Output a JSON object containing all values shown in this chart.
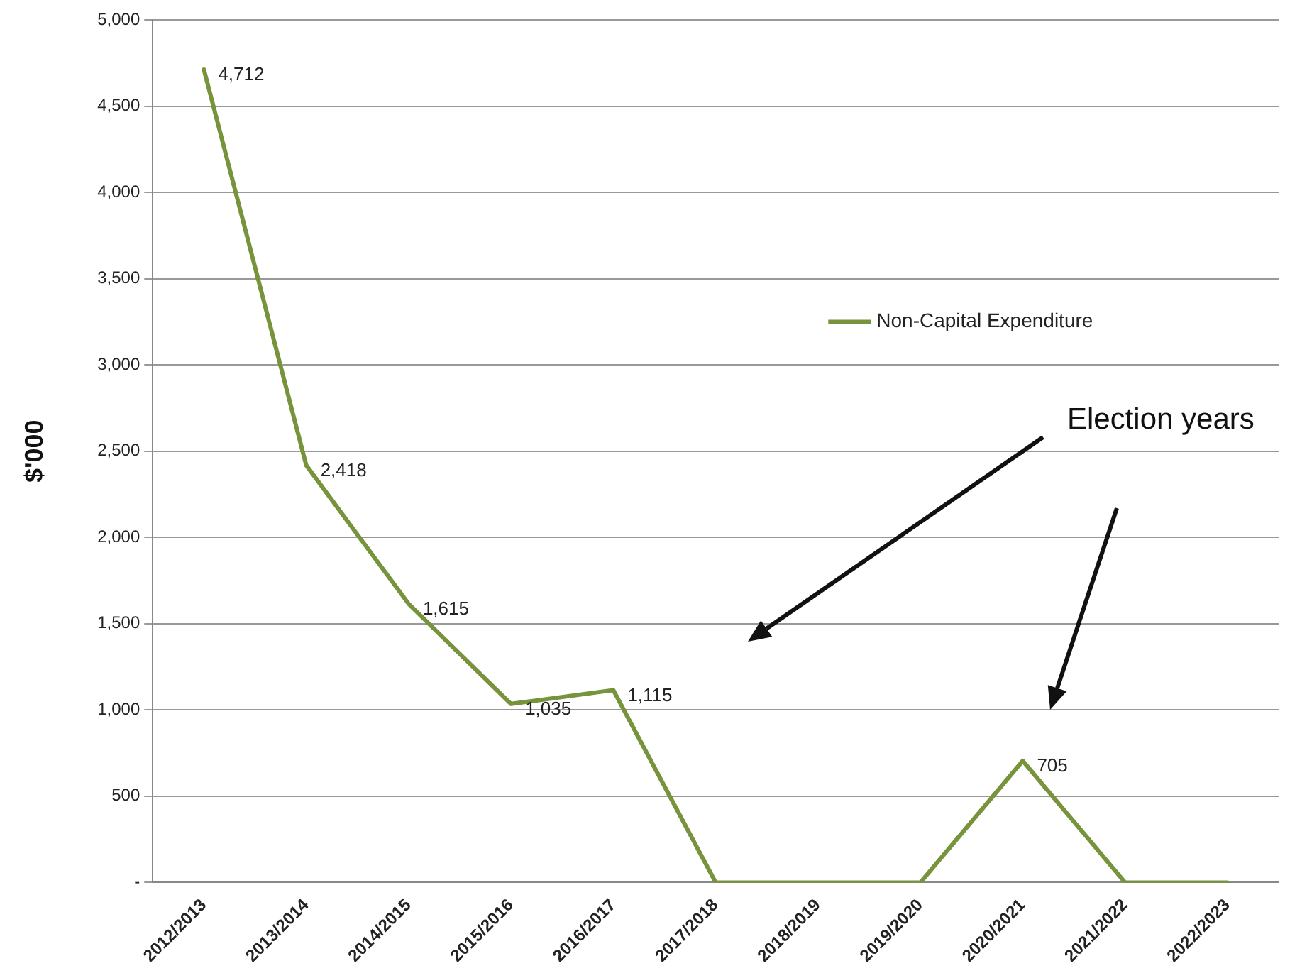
{
  "chart_data": {
    "type": "line",
    "ylabel": "$'000",
    "categories": [
      "2012/2013",
      "2013/2014",
      "2014/2015",
      "2015/2016",
      "2016/2017",
      "2017/2018",
      "2018/2019",
      "2019/2020",
      "2020/2021",
      "2021/2022",
      "2022/2023"
    ],
    "series": [
      {
        "name": "Non-Capital Expenditure",
        "color": "#77933c",
        "values": [
          4712,
          2418,
          1615,
          1035,
          1115,
          0,
          0,
          0,
          705,
          0,
          0
        ],
        "value_labels": [
          "4,712",
          "2,418",
          "1,615",
          "1,035",
          "1,115",
          null,
          null,
          null,
          "705",
          null,
          null
        ]
      }
    ],
    "ylim": [
      0,
      5000
    ],
    "yticks": [
      {
        "value": 0,
        "label": "-"
      },
      {
        "value": 500,
        "label": "500"
      },
      {
        "value": 1000,
        "label": "1,000"
      },
      {
        "value": 1500,
        "label": "1,500"
      },
      {
        "value": 2000,
        "label": "2,000"
      },
      {
        "value": 2500,
        "label": "2,500"
      },
      {
        "value": 3000,
        "label": "3,000"
      },
      {
        "value": 3500,
        "label": "3,500"
      },
      {
        "value": 4000,
        "label": "4,000"
      },
      {
        "value": 4500,
        "label": "4,500"
      },
      {
        "value": 5000,
        "label": "5,000"
      }
    ],
    "grid": "y",
    "legend": "right",
    "marker": "none",
    "line_style": "solid",
    "annotations": [
      "Election years"
    ]
  }
}
